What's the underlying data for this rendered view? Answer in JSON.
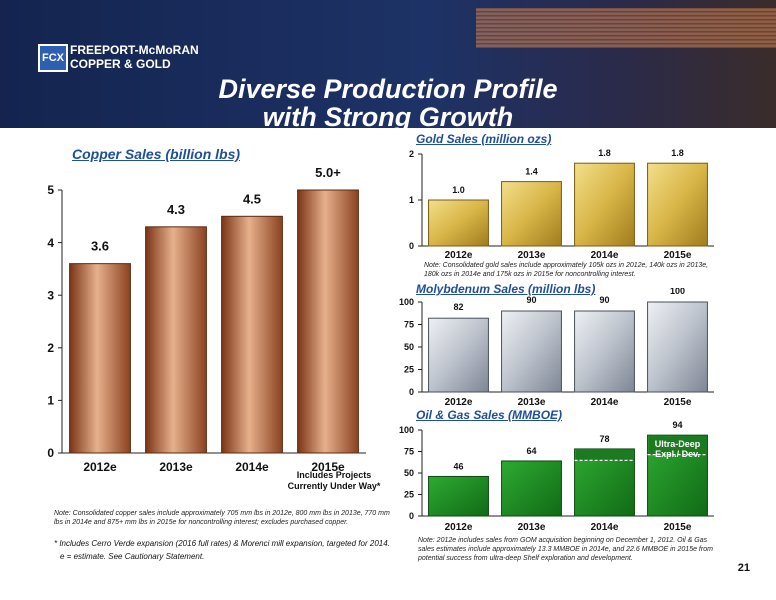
{
  "header": {
    "company_line1": "FREEPORT-McMoRAN",
    "company_line2": "COPPER & GOLD",
    "logo": "FCX",
    "title_line1": "Diverse Production Profile",
    "title_line2": "with Strong Growth"
  },
  "chart_data": [
    {
      "type": "bar",
      "title": "Copper Sales (billion lbs)",
      "categories": [
        "2012e",
        "2013e",
        "2014e",
        "2015e"
      ],
      "values": [
        3.6,
        4.3,
        4.5,
        5.0
      ],
      "labels": [
        "3.6",
        "4.3",
        "4.5",
        "5.0+"
      ],
      "ylim": [
        0,
        5
      ],
      "yticks": [
        0,
        1,
        2,
        3,
        4,
        5
      ],
      "sublabel": "Includes Projects Currently Under Way*",
      "note": "Note: Consolidated copper sales include approximately 705 mm lbs in 2012e, 800 mm lbs in 2013e, 770 mm lbs in 2014e and 875+ mm lbs in 2015e for noncontrolling interest; excludes purchased copper."
    },
    {
      "type": "bar",
      "title": "Gold Sales (million ozs)",
      "categories": [
        "2012e",
        "2013e",
        "2014e",
        "2015e"
      ],
      "values": [
        1.0,
        1.4,
        1.8,
        1.8
      ],
      "labels": [
        "1.0",
        "1.4",
        "1.8",
        "1.8"
      ],
      "ylim": [
        0,
        2
      ],
      "yticks": [
        0,
        1,
        2
      ],
      "note": "Note: Consolidated gold sales include approximately 105k ozs in 2012e, 140k ozs in 2013e, 180k ozs in 2014e and 175k ozs in 2015e for noncontrolling interest."
    },
    {
      "type": "bar",
      "title": "Molybdenum Sales (million lbs)",
      "categories": [
        "2012e",
        "2013e",
        "2014e",
        "2015e"
      ],
      "values": [
        82,
        90,
        90,
        100
      ],
      "labels": [
        "82",
        "90",
        "90",
        "100"
      ],
      "ylim": [
        0,
        100
      ],
      "yticks": [
        0,
        25,
        50,
        75,
        100
      ]
    },
    {
      "type": "bar",
      "title": "Oil & Gas Sales (MMBOE)",
      "categories": [
        "2012e",
        "2013e",
        "2014e",
        "2015e"
      ],
      "values": [
        46,
        64,
        78,
        94
      ],
      "labels": [
        "46",
        "64",
        "78",
        "94"
      ],
      "ylim": [
        0,
        100
      ],
      "yticks": [
        0,
        25,
        50,
        75,
        100
      ],
      "segment_values": [
        0,
        0,
        13.3,
        22.6
      ],
      "segment_label": "Ultra-Deep Expl./ Dev.",
      "note": "Note: 2012e includes sales from GOM acquisition beginning on December 1, 2012. Oil & Gas sales estimates include approximately 13.3 MMBOE in 2014e, and 22.6 MMBOE in 2015e from potential success from ultra-deep Shelf exploration and development."
    }
  ],
  "footnotes": {
    "star": "* Includes Cerro Verde expansion (2016 full rates) & Morenci mill expansion, targeted for 2014.",
    "estimate": "e = estimate. See Cautionary Statement."
  },
  "page_number": "21",
  "colors": {
    "header_bg": "#1a2c5e",
    "title_blue": "#1f4e9a",
    "copper": "#b06a45",
    "gold": "#d9b84a",
    "moly": "#c8cdd6",
    "oil_gas": "#1f8a24"
  }
}
